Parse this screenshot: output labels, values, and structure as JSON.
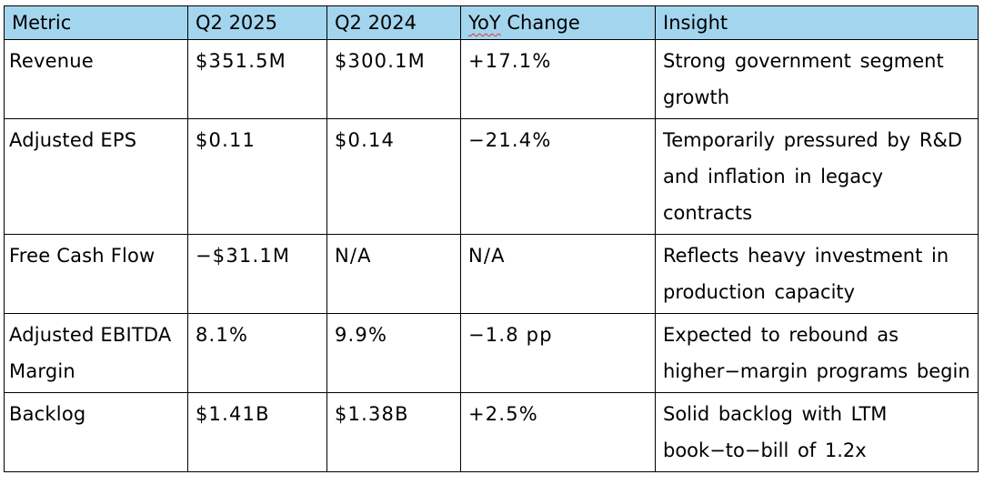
{
  "table": {
    "headers": {
      "metric": "Metric",
      "q2_2025": "Q2 2025",
      "q2_2024": "Q2 2024",
      "yoy_word": "YoY",
      "yoy_rest": " Change",
      "insight": "Insight"
    },
    "rows": [
      {
        "metric": "Revenue",
        "q2_2025": "$351.5M",
        "q2_2024": "$300.1M",
        "yoy": "+17.1%",
        "insight": "Strong government segment growth"
      },
      {
        "metric": "Adjusted EPS",
        "q2_2025": "$0.11",
        "q2_2024": "$0.14",
        "yoy": "−21.4%",
        "insight": "Temporarily pressured by R&D and inflation in legacy contracts"
      },
      {
        "metric": "Free Cash Flow",
        "q2_2025": "−$31.1M",
        "q2_2024": "N/A",
        "yoy": "N/A",
        "insight": "Reflects heavy investment in production capacity"
      },
      {
        "metric": "Adjusted EBITDA Margin",
        "q2_2025": "8.1%",
        "q2_2024": "9.9%",
        "yoy": "−1.8 pp",
        "insight": "Expected to rebound as higher−margin programs begin"
      },
      {
        "metric": "Backlog",
        "q2_2025": "$1.41B",
        "q2_2024": "$1.38B",
        "yoy": "+2.5%",
        "insight": "Solid backlog with LTM book−to−bill of 1.2x"
      }
    ],
    "colors": {
      "header_bg": "#a4d5ee",
      "border": "#000000",
      "spellcheck_underline": "#d23a3a"
    }
  }
}
